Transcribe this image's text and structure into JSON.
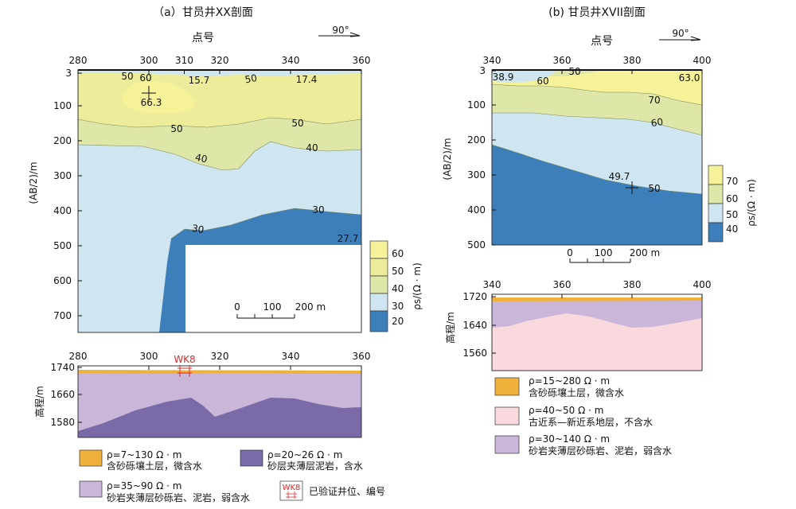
{
  "colors": {
    "c_lt20": "#3d7fba",
    "c_20_30": "#3d7fba",
    "c_30_40": "#cfe6f0",
    "c_40_50": "#dfe7a8",
    "c_50_60": "#ecec9a",
    "c_gt60": "#f5f29a",
    "ct_30_40": "#5a8fc4",
    "gravel": "#f0b13b",
    "sandstone": "#c9b6d9",
    "mudstone": "#7a6aa8",
    "paleogene": "#f9d9de",
    "well": "#d92b2b"
  },
  "panel_a": {
    "title": "（a）甘员井XX剖面",
    "x_title": "点号",
    "direction": "90°",
    "x_ticks": [
      "280",
      "300",
      "310",
      "320",
      "340",
      "360"
    ],
    "y_title": "(AB/2)/m",
    "y_ticks": [
      "3",
      "100",
      "200",
      "300",
      "400",
      "500",
      "600",
      "700"
    ],
    "contour_labels": [
      "50",
      "60",
      "66.3",
      "15.7",
      "50",
      "17.4",
      "50",
      "50",
      "40",
      "40",
      "30",
      "30",
      "27.7"
    ],
    "scale_ticks": [
      "0",
      "100",
      "200 m"
    ],
    "colorbar_ticks": [
      "60",
      "50",
      "40",
      "30",
      "20"
    ],
    "colorbar_title": "ρs/(Ω · m)",
    "geo_x_ticks": [
      "280",
      "300",
      "320",
      "340",
      "360"
    ],
    "geo_y_title": "高程/m",
    "geo_y_ticks": [
      "1740",
      "1660",
      "1580"
    ],
    "well_label": "WK8",
    "legend": [
      {
        "range": "ρ=7~130 Ω · m",
        "desc": "含砂砾壤土层，微含水"
      },
      {
        "range": "ρ=20~26 Ω · m",
        "desc": "砂层夹薄层泥岩，含水"
      },
      {
        "range": "ρ=35~90 Ω · m",
        "desc": "砂岩夹薄层砂砾岩、泥岩，弱含水"
      },
      {
        "range": "WK8",
        "desc": "已验证井位、编号"
      }
    ]
  },
  "panel_b": {
    "title": "(b) 甘员井XVII剖面",
    "x_title": "点号",
    "direction": "90°",
    "x_ticks": [
      "340",
      "360",
      "380",
      "400"
    ],
    "y_title": "(AB/2)/m",
    "y_ticks": [
      "3",
      "100",
      "200",
      "300",
      "400",
      "500"
    ],
    "contour_labels": [
      "38.9",
      "50",
      "60",
      "63.0",
      "70",
      "60",
      "49.7",
      "50"
    ],
    "scale_ticks": [
      "0",
      "100",
      "200 m"
    ],
    "colorbar_ticks": [
      "70",
      "60",
      "50",
      "40"
    ],
    "colorbar_title": "ρs/(Ω · m)",
    "geo_x_ticks": [
      "340",
      "360",
      "380",
      "400"
    ],
    "geo_y_title": "高程/m",
    "geo_y_ticks": [
      "1720",
      "1640",
      "1560"
    ],
    "legend": [
      {
        "range": "ρ=15~280 Ω · m",
        "desc": "含砂砾壤土层，微含水"
      },
      {
        "range": "ρ=40~50 Ω · m",
        "desc": "古近系—新近系地层，不含水"
      },
      {
        "range": "ρ=30~140 Ω · m",
        "desc": "砂岩夹薄层砂砾岩、泥岩，弱含水"
      }
    ]
  }
}
